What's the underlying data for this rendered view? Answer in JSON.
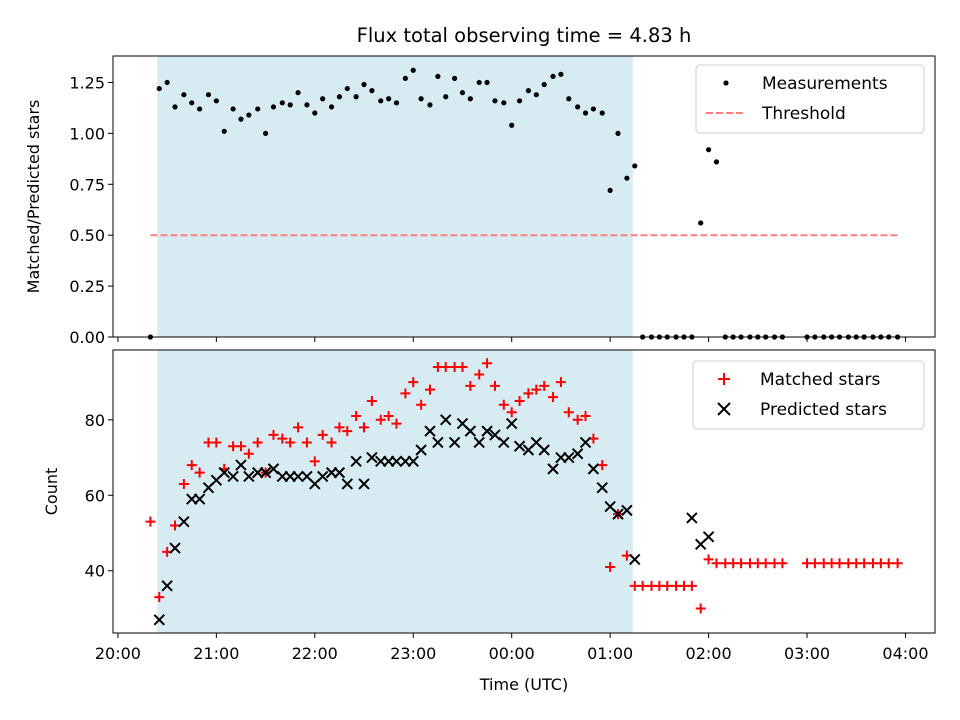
{
  "chart_data": {
    "title": "Flux total observing time = 4.83 h",
    "xlabel": "Time (UTC)",
    "xticks": [
      "20:00",
      "21:00",
      "22:00",
      "23:00",
      "00:00",
      "01:00",
      "02:00",
      "03:00",
      "04:00"
    ],
    "x_unit": "hours after 20:00 UTC",
    "xlim": [
      -0.05,
      8.3
    ],
    "observing_window": [
      0.4,
      5.23
    ],
    "panels": [
      {
        "type": "scatter",
        "ylabel": "Matched/Predicted stars",
        "ylim": [
          0,
          1.38
        ],
        "yticks": [
          "0.00",
          "0.25",
          "0.50",
          "0.75",
          "1.00",
          "1.25"
        ],
        "ytick_values": [
          0,
          0.25,
          0.5,
          0.75,
          1.0,
          1.25
        ],
        "legend_position": "top-right",
        "threshold": {
          "name": "Threshold",
          "value": 0.5,
          "x_range": [
            0.33,
            7.92
          ],
          "color": "#ff7f7f"
        },
        "series": [
          {
            "name": "Measurements",
            "color": "#000000",
            "x": [
              0.33,
              0.42,
              0.5,
              0.58,
              0.67,
              0.75,
              0.83,
              0.92,
              1.0,
              1.08,
              1.17,
              1.25,
              1.33,
              1.42,
              1.5,
              1.58,
              1.67,
              1.75,
              1.83,
              1.92,
              2.0,
              2.08,
              2.17,
              2.25,
              2.33,
              2.42,
              2.5,
              2.58,
              2.67,
              2.75,
              2.83,
              2.92,
              3.0,
              3.08,
              3.17,
              3.25,
              3.33,
              3.42,
              3.5,
              3.58,
              3.67,
              3.75,
              3.83,
              3.92,
              4.0,
              4.08,
              4.17,
              4.25,
              4.33,
              4.42,
              4.5,
              4.58,
              4.67,
              4.75,
              4.83,
              4.92,
              5.0,
              5.08,
              5.17,
              5.25,
              5.33,
              5.42,
              5.5,
              5.58,
              5.67,
              5.75,
              5.83,
              5.92,
              6.0,
              6.08,
              6.17,
              6.25,
              6.33,
              6.42,
              6.5,
              6.58,
              6.67,
              6.75,
              7.0,
              7.08,
              7.17,
              7.25,
              7.33,
              7.42,
              7.5,
              7.58,
              7.67,
              7.75,
              7.83,
              7.92
            ],
            "y": [
              0.0,
              1.22,
              1.25,
              1.13,
              1.19,
              1.15,
              1.12,
              1.19,
              1.16,
              1.01,
              1.12,
              1.07,
              1.09,
              1.12,
              1.0,
              1.13,
              1.15,
              1.14,
              1.2,
              1.14,
              1.1,
              1.17,
              1.13,
              1.18,
              1.22,
              1.18,
              1.24,
              1.21,
              1.16,
              1.17,
              1.15,
              1.27,
              1.31,
              1.17,
              1.14,
              1.28,
              1.18,
              1.27,
              1.2,
              1.17,
              1.25,
              1.25,
              1.16,
              1.15,
              1.04,
              1.16,
              1.21,
              1.19,
              1.24,
              1.28,
              1.29,
              1.17,
              1.13,
              1.1,
              1.12,
              1.1,
              0.72,
              1.0,
              0.78,
              0.84,
              0.0,
              0.0,
              0.0,
              0.0,
              0.0,
              0.0,
              0.0,
              0.56,
              0.92,
              0.86,
              0.0,
              0.0,
              0.0,
              0.0,
              0.0,
              0.0,
              0.0,
              0.0,
              0.0,
              0.0,
              0.0,
              0.0,
              0.0,
              0.0,
              0.0,
              0.0,
              0.0,
              0.0,
              0.0,
              0.0
            ]
          }
        ]
      },
      {
        "type": "scatter",
        "ylabel": "Count",
        "ylim": [
          23.5,
          98.5
        ],
        "yticks": [
          "40",
          "60",
          "80"
        ],
        "ytick_values": [
          40,
          60,
          80
        ],
        "legend_position": "top-right",
        "series": [
          {
            "name": "Matched stars",
            "marker": "plus",
            "color": "#ff0000",
            "x": [
              0.33,
              0.42,
              0.5,
              0.58,
              0.67,
              0.75,
              0.83,
              0.92,
              1.0,
              1.08,
              1.17,
              1.25,
              1.33,
              1.42,
              1.5,
              1.58,
              1.67,
              1.75,
              1.83,
              1.92,
              2.0,
              2.08,
              2.17,
              2.25,
              2.33,
              2.42,
              2.5,
              2.58,
              2.67,
              2.75,
              2.83,
              2.92,
              3.0,
              3.08,
              3.17,
              3.25,
              3.33,
              3.42,
              3.5,
              3.58,
              3.67,
              3.75,
              3.83,
              3.92,
              4.0,
              4.08,
              4.17,
              4.25,
              4.33,
              4.42,
              4.5,
              4.58,
              4.67,
              4.75,
              4.83,
              4.92,
              5.0,
              5.08,
              5.17,
              5.25,
              5.33,
              5.42,
              5.5,
              5.58,
              5.67,
              5.75,
              5.83,
              5.92,
              6.0,
              6.08,
              6.17,
              6.25,
              6.33,
              6.42,
              6.5,
              6.58,
              6.67,
              6.75,
              7.0,
              7.08,
              7.17,
              7.25,
              7.33,
              7.42,
              7.5,
              7.58,
              7.67,
              7.75,
              7.83,
              7.92
            ],
            "y": [
              53,
              33,
              45,
              52,
              63,
              68,
              66,
              74,
              74,
              67,
              73,
              73,
              71,
              74,
              66,
              76,
              75,
              74,
              78,
              74,
              69,
              76,
              74,
              78,
              77,
              81,
              78,
              85,
              80,
              81,
              79,
              87,
              90,
              84,
              88,
              94,
              94,
              94,
              94,
              89,
              92,
              95,
              89,
              84,
              82,
              85,
              87,
              88,
              89,
              86,
              90,
              82,
              80,
              81,
              75,
              68,
              41,
              55,
              44,
              36,
              36,
              36,
              36,
              36,
              36,
              36,
              36,
              30,
              43,
              42,
              42,
              42,
              42,
              42,
              42,
              42,
              42,
              42,
              42,
              42,
              42,
              42,
              42,
              42,
              42,
              42,
              42,
              42,
              42,
              42
            ]
          },
          {
            "name": "Predicted stars",
            "marker": "cross",
            "color": "#000000",
            "x": [
              0.42,
              0.5,
              0.58,
              0.67,
              0.75,
              0.83,
              0.92,
              1.0,
              1.08,
              1.17,
              1.25,
              1.33,
              1.42,
              1.5,
              1.58,
              1.67,
              1.75,
              1.83,
              1.92,
              2.0,
              2.08,
              2.17,
              2.25,
              2.33,
              2.42,
              2.5,
              2.58,
              2.67,
              2.75,
              2.83,
              2.92,
              3.0,
              3.08,
              3.17,
              3.25,
              3.33,
              3.42,
              3.5,
              3.58,
              3.67,
              3.75,
              3.83,
              3.92,
              4.0,
              4.08,
              4.17,
              4.25,
              4.33,
              4.42,
              4.5,
              4.58,
              4.67,
              4.75,
              4.83,
              4.92,
              5.0,
              5.08,
              5.17,
              5.25,
              5.83,
              5.92,
              6.0
            ],
            "y": [
              27,
              36,
              46,
              53,
              59,
              59,
              62,
              64,
              66,
              65,
              68,
              65,
              66,
              66,
              67,
              65,
              65,
              65,
              65,
              63,
              65,
              66,
              66,
              63,
              69,
              63,
              70,
              69,
              69,
              69,
              69,
              69,
              72,
              77,
              74,
              80,
              74,
              79,
              77,
              74,
              77,
              76,
              74,
              79,
              73,
              72,
              74,
              72,
              67,
              70,
              70,
              71,
              74,
              67,
              62,
              57,
              55,
              56,
              43,
              54,
              47,
              49
            ]
          }
        ]
      }
    ]
  }
}
